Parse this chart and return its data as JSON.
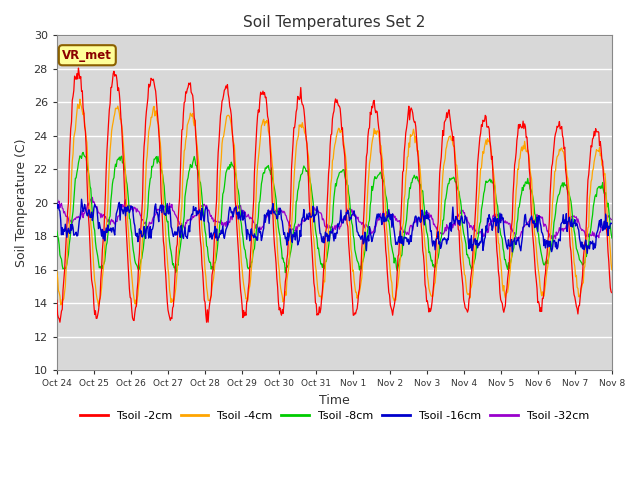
{
  "title": "Soil Temperatures Set 2",
  "xlabel": "Time",
  "ylabel": "Soil Temperature (C)",
  "ylim": [
    10,
    30
  ],
  "yticks": [
    10,
    12,
    14,
    16,
    18,
    20,
    22,
    24,
    26,
    28,
    30
  ],
  "xtick_labels": [
    "Oct 24",
    "Oct 25",
    "Oct 26",
    "Oct 27",
    "Oct 28",
    "Oct 29",
    "Oct 30",
    "Oct 31",
    "Nov 1",
    "Nov 2",
    "Nov 3",
    "Nov 4",
    "Nov 5",
    "Nov 6",
    "Nov 7",
    "Nov 8"
  ],
  "annotation": "VR_met",
  "bg_color": "#d8d8d8",
  "fig_color": "#ffffff",
  "legend": [
    {
      "label": "Tsoil -2cm",
      "color": "#ff0000"
    },
    {
      "label": "Tsoil -4cm",
      "color": "#ffa500"
    },
    {
      "label": "Tsoil -8cm",
      "color": "#00cc00"
    },
    {
      "label": "Tsoil -16cm",
      "color": "#0000cc"
    },
    {
      "label": "Tsoil -32cm",
      "color": "#9900cc"
    }
  ],
  "grid_color": "#ffffff",
  "num_days": 15,
  "pts_per_day": 48
}
